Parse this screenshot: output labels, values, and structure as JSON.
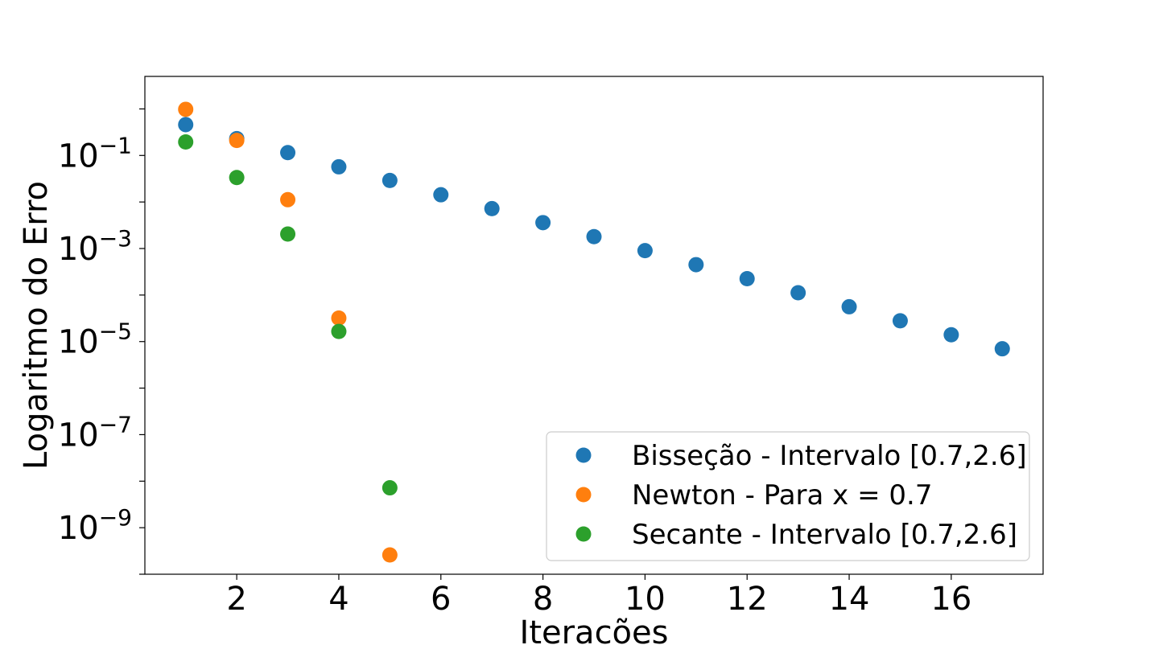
{
  "chart_data": {
    "type": "scatter",
    "title": "",
    "xlabel": "Iteracões",
    "ylabel": "Logaritmo do Erro",
    "yscale": "log",
    "xlim": [
      0.2,
      17.8
    ],
    "ylim": [
      1e-10,
      5.0
    ],
    "xticks": [
      2,
      4,
      6,
      8,
      10,
      12,
      14,
      16
    ],
    "yticks": [
      {
        "value": 0.1,
        "base": "10",
        "exp": "−1"
      },
      {
        "value": 0.001,
        "base": "10",
        "exp": "−3"
      },
      {
        "value": 1e-05,
        "base": "10",
        "exp": "−5"
      },
      {
        "value": 1e-07,
        "base": "10",
        "exp": "−7"
      },
      {
        "value": 1e-09,
        "base": "10",
        "exp": "−9"
      }
    ],
    "grid": false,
    "legend_position": "bottom-right",
    "series": [
      {
        "name": "Bisseção - Intervalo [0.7,2.6]",
        "color": "#1f77b4",
        "x": [
          1,
          2,
          3,
          4,
          5,
          6,
          7,
          8,
          9,
          10,
          11,
          12,
          13,
          14,
          15,
          16,
          17
        ],
        "y": [
          0.46,
          0.23,
          0.115,
          0.057,
          0.029,
          0.0143,
          0.0072,
          0.0036,
          0.0018,
          0.0009,
          0.00045,
          0.000225,
          0.000112,
          5.6e-05,
          2.8e-05,
          1.4e-05,
          7e-06
        ]
      },
      {
        "name": "Newton - Para x = 0.7",
        "color": "#ff7f0e",
        "x": [
          1,
          2,
          3,
          4,
          5
        ],
        "y": [
          0.98,
          0.21,
          0.0112,
          3.2e-05,
          2.6e-10
        ]
      },
      {
        "name": "Secante - Intervalo [0.7,2.6]",
        "color": "#2ca02c",
        "x": [
          1,
          2,
          3,
          4,
          5
        ],
        "y": [
          0.195,
          0.0335,
          0.00205,
          1.65e-05,
          7.2e-09
        ]
      }
    ]
  }
}
